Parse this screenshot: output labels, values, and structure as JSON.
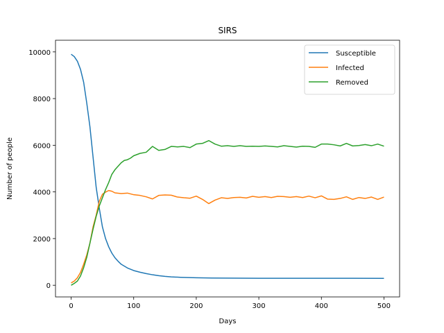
{
  "chart_data": {
    "type": "line",
    "title": "SIRS",
    "xlabel": "Days",
    "ylabel": "Number of people",
    "xlim": [
      -25,
      525
    ],
    "ylim": [
      -500,
      10500
    ],
    "xticks": [
      0,
      100,
      200,
      300,
      400,
      500
    ],
    "yticks": [
      0,
      2000,
      4000,
      6000,
      8000,
      10000
    ],
    "grid": false,
    "legend_position": "top-right",
    "series": [
      {
        "name": "Susceptible",
        "color": "#1f77b4",
        "x": [
          0,
          5,
          10,
          15,
          20,
          25,
          30,
          35,
          40,
          45,
          50,
          55,
          60,
          65,
          70,
          75,
          80,
          90,
          100,
          110,
          120,
          130,
          140,
          150,
          160,
          175,
          200,
          225,
          250,
          300,
          350,
          400,
          450,
          500
        ],
        "y": [
          9900,
          9800,
          9600,
          9250,
          8700,
          7800,
          6800,
          5500,
          4200,
          3300,
          2500,
          2000,
          1650,
          1380,
          1180,
          1030,
          900,
          740,
          630,
          560,
          500,
          450,
          410,
          380,
          360,
          340,
          320,
          310,
          305,
          300,
          300,
          300,
          298,
          295
        ]
      },
      {
        "name": "Infected",
        "color": "#ff7f0e",
        "x": [
          0,
          5,
          10,
          15,
          20,
          25,
          30,
          35,
          40,
          45,
          50,
          55,
          60,
          65,
          70,
          80,
          90,
          100,
          110,
          120,
          130,
          140,
          150,
          160,
          170,
          180,
          190,
          200,
          210,
          220,
          230,
          240,
          250,
          260,
          270,
          280,
          290,
          300,
          310,
          320,
          330,
          340,
          350,
          360,
          370,
          380,
          390,
          400,
          410,
          420,
          430,
          440,
          450,
          460,
          470,
          480,
          490,
          500
        ],
        "y": [
          100,
          180,
          320,
          550,
          900,
          1300,
          1800,
          2500,
          3000,
          3600,
          3900,
          3990,
          4060,
          4030,
          3960,
          3930,
          3950,
          3880,
          3850,
          3790,
          3700,
          3850,
          3870,
          3860,
          3780,
          3750,
          3730,
          3820,
          3680,
          3500,
          3650,
          3750,
          3720,
          3760,
          3770,
          3740,
          3810,
          3770,
          3800,
          3760,
          3810,
          3800,
          3770,
          3800,
          3760,
          3820,
          3750,
          3830,
          3690,
          3680,
          3720,
          3790,
          3680,
          3760,
          3720,
          3780,
          3680,
          3780
        ]
      },
      {
        "name": "Removed",
        "color": "#2ca02c",
        "x": [
          0,
          5,
          10,
          15,
          20,
          25,
          30,
          35,
          40,
          45,
          50,
          55,
          60,
          65,
          70,
          75,
          80,
          85,
          90,
          95,
          100,
          110,
          120,
          130,
          140,
          150,
          160,
          170,
          180,
          190,
          200,
          210,
          220,
          230,
          240,
          250,
          260,
          270,
          280,
          290,
          300,
          310,
          320,
          330,
          340,
          350,
          360,
          370,
          380,
          390,
          400,
          410,
          420,
          430,
          440,
          450,
          460,
          470,
          480,
          490,
          500
        ],
        "y": [
          0,
          80,
          180,
          400,
          750,
          1200,
          1800,
          2400,
          2950,
          3400,
          3750,
          4100,
          4400,
          4750,
          4950,
          5100,
          5250,
          5350,
          5380,
          5450,
          5550,
          5650,
          5700,
          5950,
          5780,
          5820,
          5950,
          5930,
          5950,
          5900,
          6050,
          6080,
          6200,
          6050,
          5960,
          5980,
          5950,
          5980,
          5950,
          5960,
          5950,
          5970,
          5950,
          5930,
          5980,
          5950,
          5920,
          5960,
          5950,
          5910,
          6050,
          6050,
          6020,
          5970,
          6080,
          5970,
          5990,
          6030,
          5980,
          6050,
          5960
        ]
      }
    ]
  }
}
